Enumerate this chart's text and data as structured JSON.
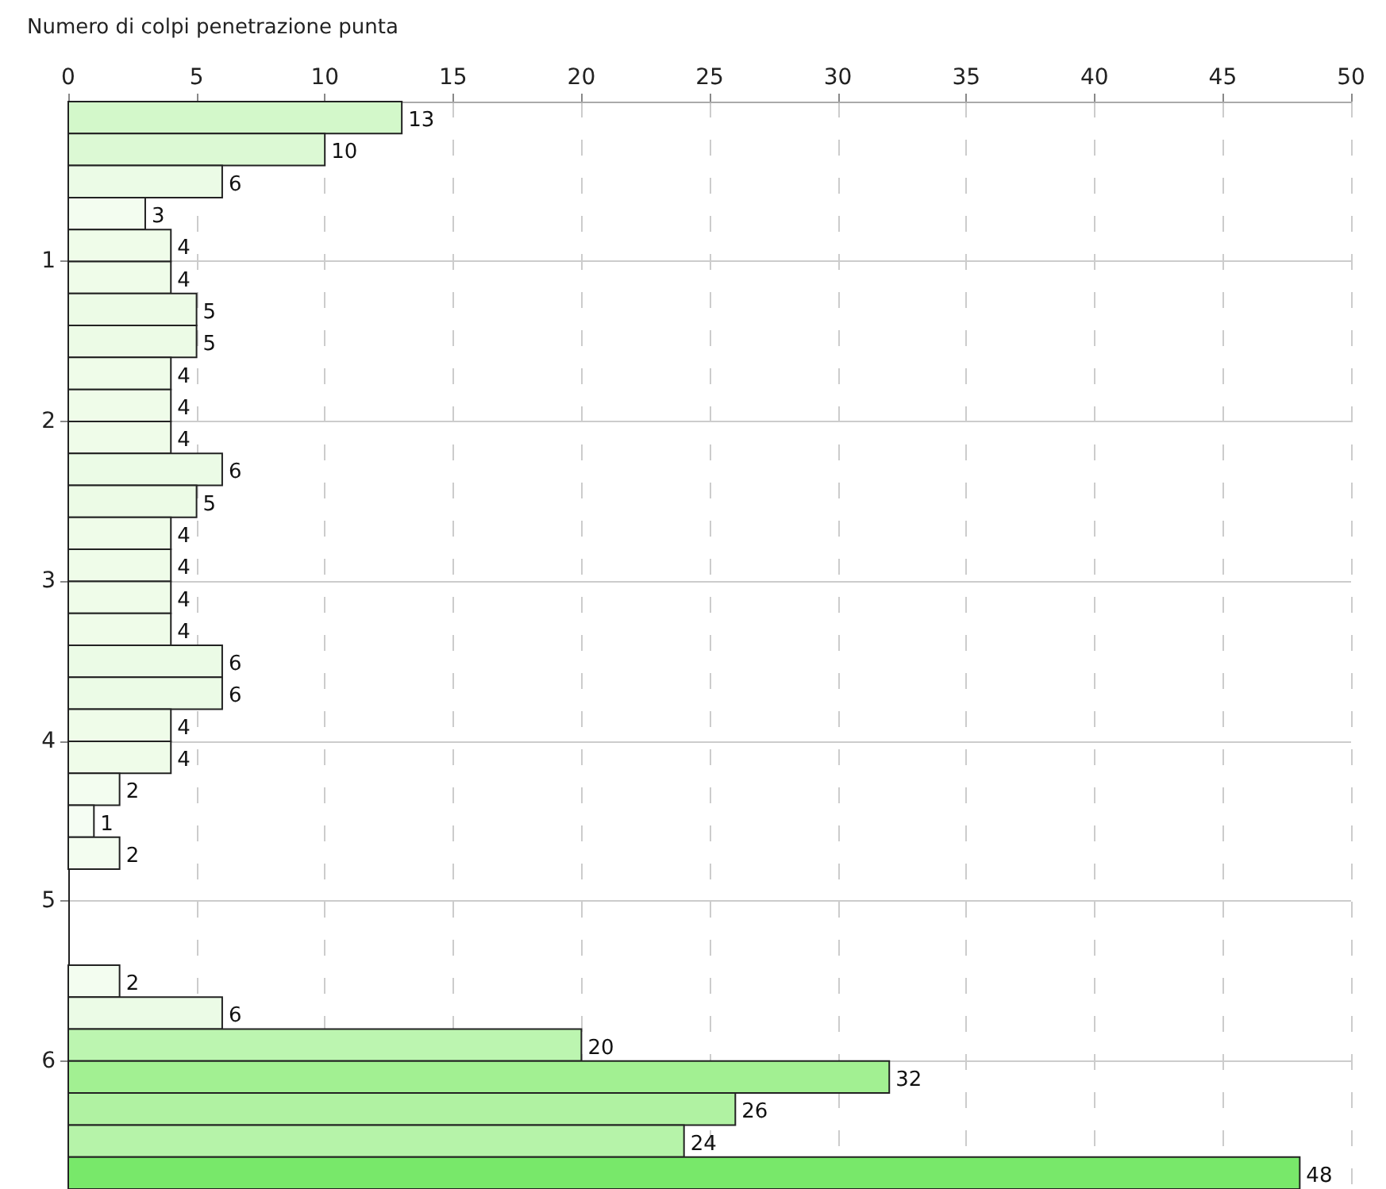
{
  "chart_data": {
    "type": "histogram",
    "orientation": "horizontal",
    "title": "Numero di colpi penetrazione punta",
    "bins": [
      0,
      0.2,
      0.4,
      0.6,
      0.8,
      1.0,
      1.2,
      1.4,
      1.6,
      1.8,
      2.0,
      2.2,
      2.4,
      2.6,
      2.8,
      3.0,
      3.2,
      3.4,
      3.6,
      3.8,
      4.0,
      4.2,
      4.4,
      4.6,
      4.8,
      5.0,
      5.2,
      5.4,
      5.6,
      5.8,
      6.0,
      6.2,
      6.4,
      6.6,
      6.8
    ],
    "values": [
      13,
      10,
      6,
      3,
      4,
      4,
      5,
      5,
      4,
      4,
      4,
      6,
      5,
      4,
      4,
      4,
      4,
      6,
      6,
      4,
      4,
      2,
      1,
      2,
      null,
      null,
      null,
      2,
      6,
      20,
      32,
      26,
      24,
      48
    ],
    "colors": [
      "#d3f8ca",
      "#dcf9d4",
      "#ebfbe6",
      "#f3fdf0",
      "#effce9",
      "#effce9",
      "#ecfbe6",
      "#ecfbe6",
      "#effce9",
      "#effce9",
      "#effce9",
      "#ebfbe6",
      "#ecfbe6",
      "#effce9",
      "#effce9",
      "#effce9",
      "#effce9",
      "#ebfbe6",
      "#ebfbe6",
      "#effce9",
      "#effce9",
      "#f3fdf0",
      "#f5fdf3",
      "#f3fdf0",
      null,
      null,
      null,
      "#f3fdf0",
      "#ebfbe6",
      "#bcf5b0",
      "#a2f092",
      "#b0f2a2",
      "#b6f3a9",
      "#78e86a"
    ],
    "xlim": [
      0,
      50
    ],
    "xticks": [
      0,
      5,
      10,
      15,
      20,
      25,
      30,
      35,
      40,
      45,
      50
    ],
    "ylim": [
      6.8,
      0
    ],
    "yticks": [
      1,
      2,
      3,
      4,
      5,
      6
    ],
    "grid": true,
    "data_labels": true
  }
}
